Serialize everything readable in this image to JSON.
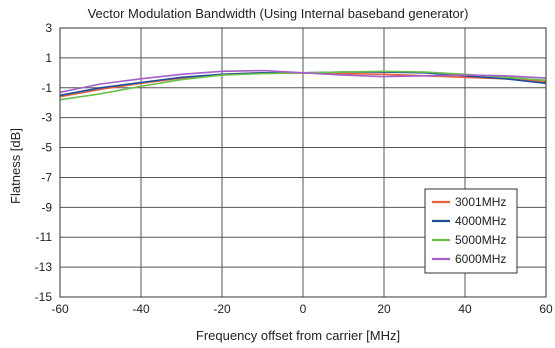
{
  "chart_data": {
    "type": "line",
    "title": "Vector Modulation Bandwidth (Using Internal baseband generator)",
    "xlabel": "Frequency offset from carrier [MHz]",
    "ylabel": "Flatness [dB]",
    "xlim": [
      -60,
      60
    ],
    "ylim": [
      -15,
      3
    ],
    "xticks": [
      -60,
      -40,
      -20,
      0,
      20,
      40,
      60
    ],
    "yticks": [
      3,
      1,
      -1,
      -3,
      -5,
      -7,
      -9,
      -11,
      -13,
      -15
    ],
    "grid": true,
    "legend_position": "bottom-right",
    "series": [
      {
        "name": "3001MHz",
        "color": "#e8603c",
        "x": [
          -60,
          -50,
          -40,
          -30,
          -20,
          -10,
          0,
          10,
          20,
          30,
          40,
          50,
          60
        ],
        "y": [
          -1.6,
          -1.1,
          -0.7,
          -0.35,
          -0.1,
          0.0,
          0.0,
          -0.05,
          -0.1,
          -0.2,
          -0.3,
          -0.4,
          -0.6
        ]
      },
      {
        "name": "4000MHz",
        "color": "#1f4e9a",
        "x": [
          -60,
          -50,
          -40,
          -30,
          -20,
          -10,
          0,
          10,
          20,
          30,
          40,
          50,
          60
        ],
        "y": [
          -1.5,
          -1.0,
          -0.65,
          -0.3,
          -0.1,
          0.0,
          0.0,
          0.05,
          0.05,
          0.0,
          -0.2,
          -0.4,
          -0.7
        ]
      },
      {
        "name": "5000MHz",
        "color": "#6cc04a",
        "x": [
          -60,
          -50,
          -40,
          -30,
          -20,
          -10,
          0,
          10,
          20,
          30,
          40,
          50,
          60
        ],
        "y": [
          -1.8,
          -1.4,
          -0.9,
          -0.45,
          -0.15,
          -0.05,
          0.0,
          0.05,
          0.1,
          0.05,
          -0.1,
          -0.3,
          -0.5
        ]
      },
      {
        "name": "6000MHz",
        "color": "#a45fc8",
        "x": [
          -60,
          -50,
          -40,
          -30,
          -20,
          -10,
          0,
          10,
          20,
          30,
          40,
          50,
          60
        ],
        "y": [
          -1.3,
          -0.75,
          -0.4,
          -0.1,
          0.1,
          0.15,
          0.0,
          -0.15,
          -0.25,
          -0.2,
          -0.15,
          -0.2,
          -0.35
        ]
      }
    ]
  }
}
